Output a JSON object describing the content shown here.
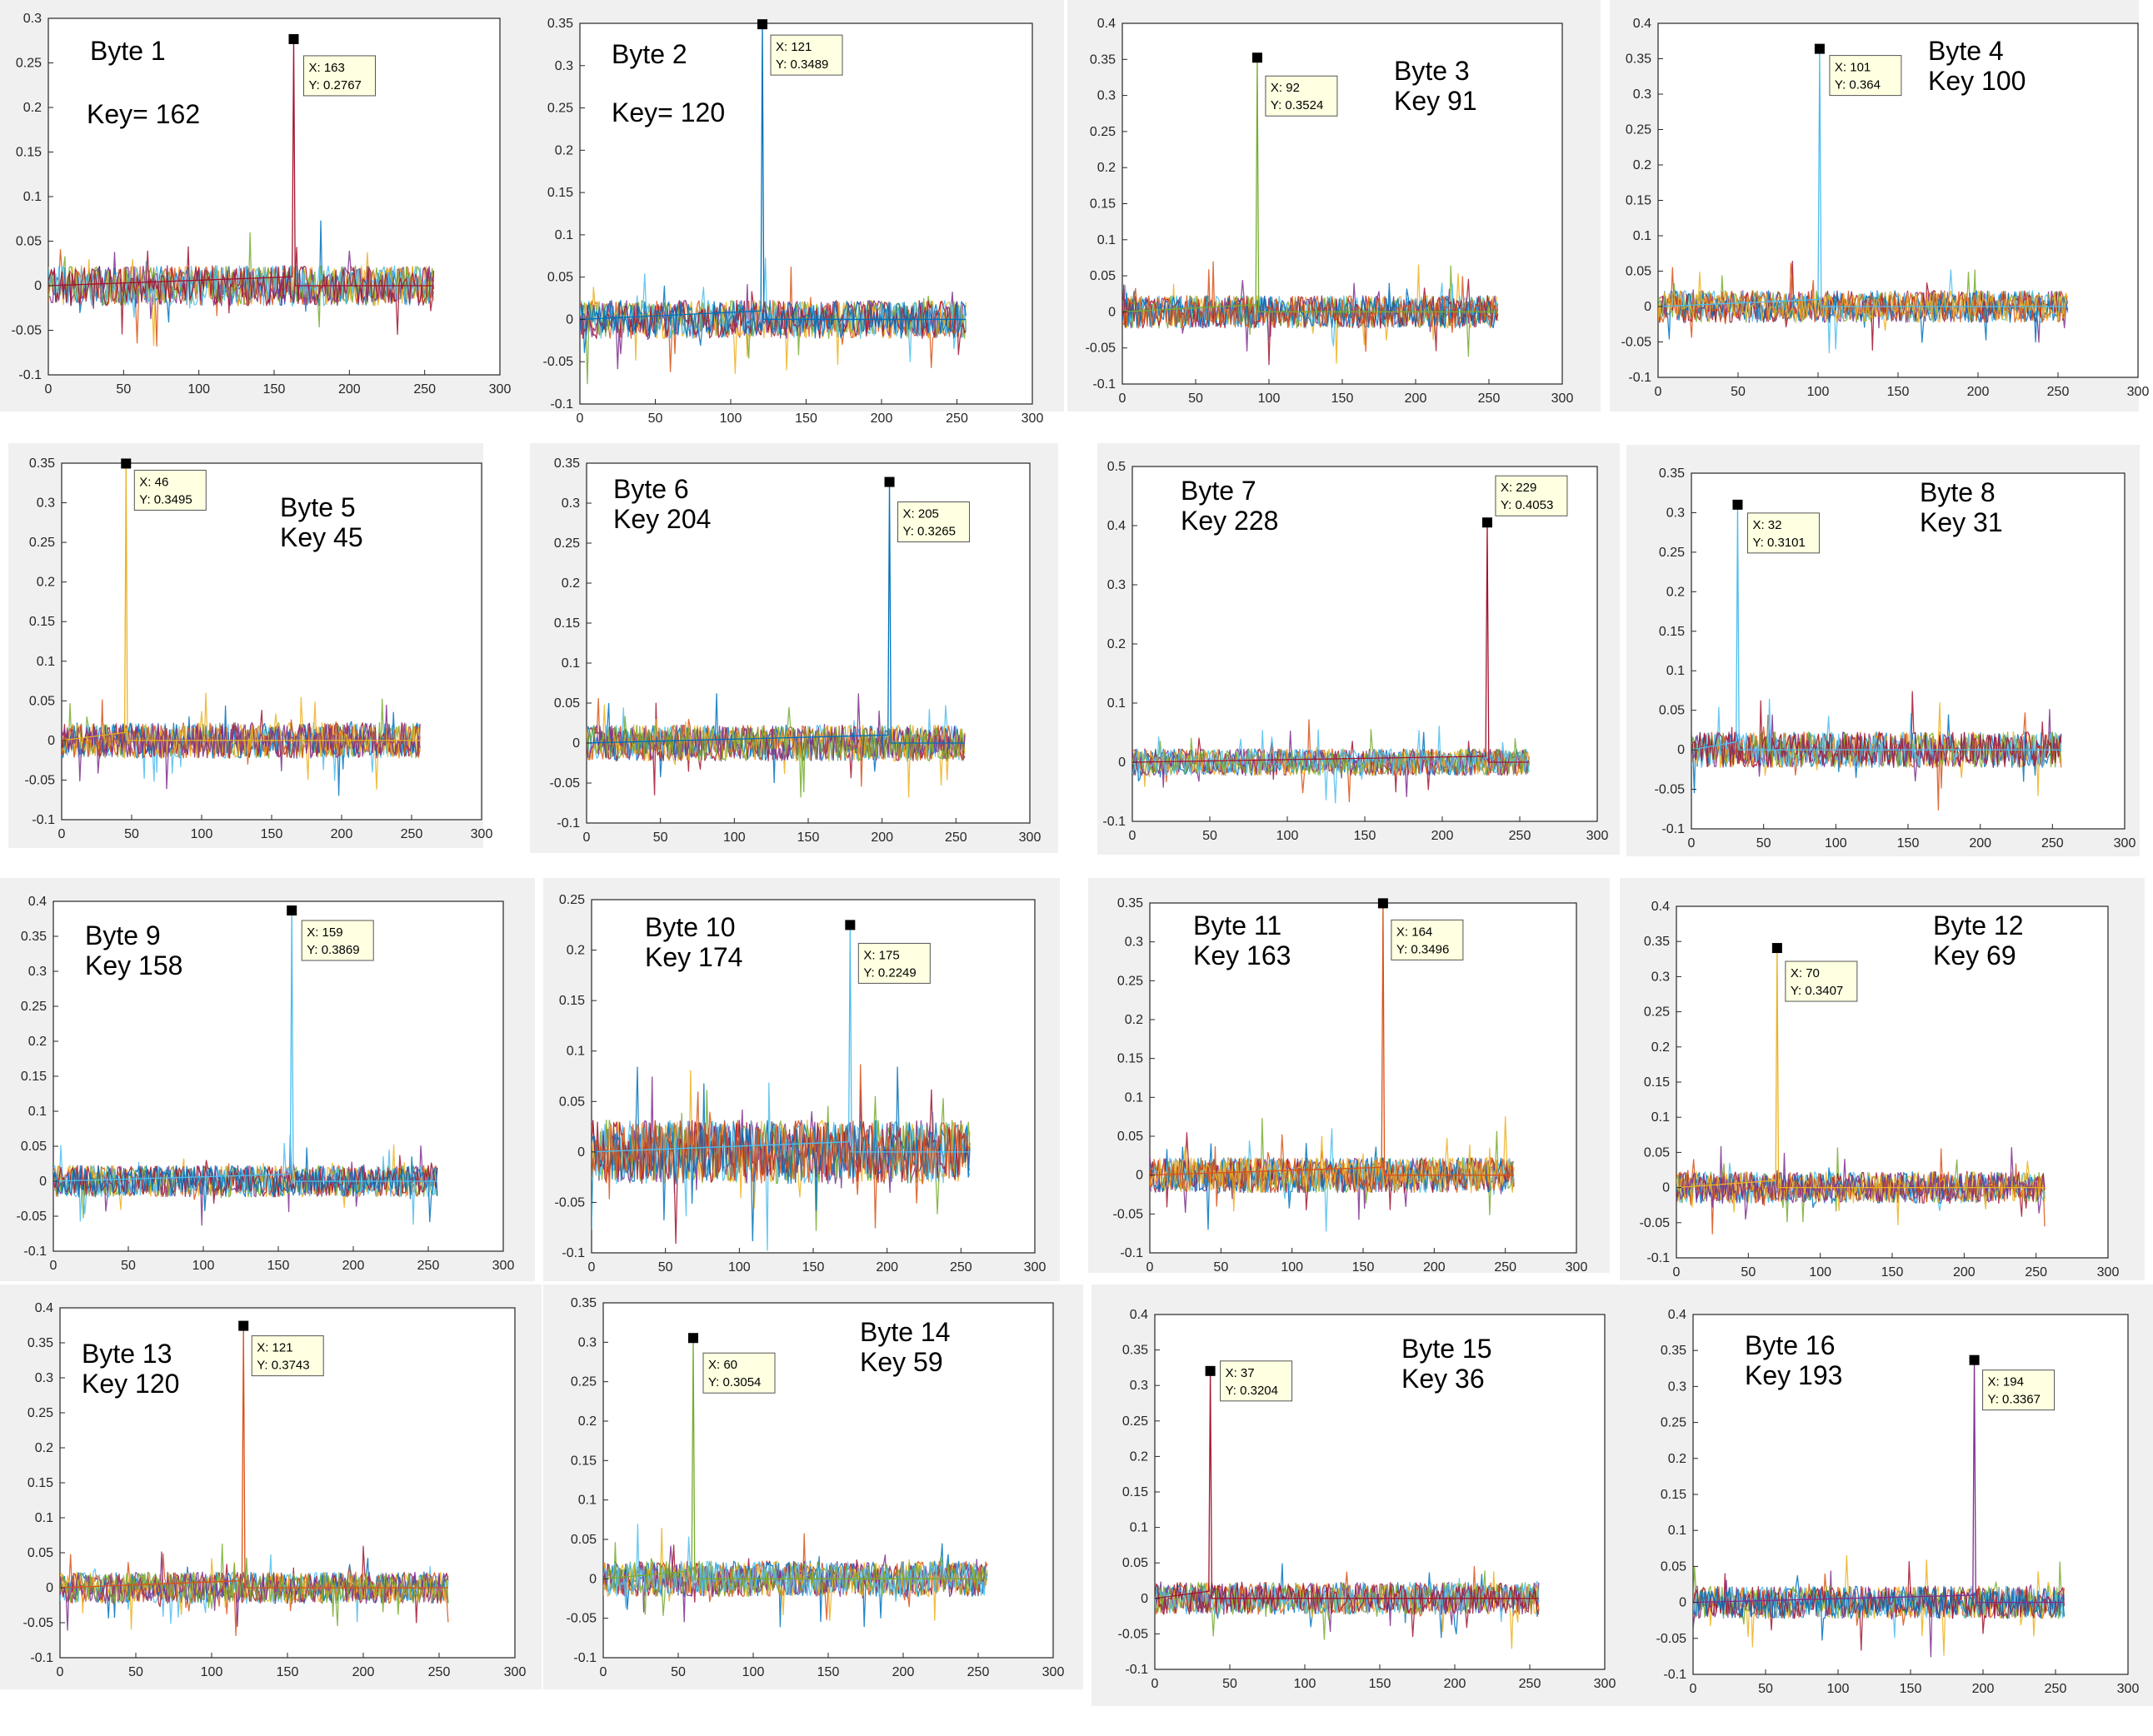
{
  "palette": [
    "#0072BD",
    "#D95319",
    "#EDB120",
    "#7E2F8E",
    "#77AC30",
    "#4DBEEE",
    "#A2142F"
  ],
  "chart_data": [
    {
      "type": "line",
      "title": "",
      "xlabel": "",
      "ylabel": "",
      "xlim": [
        0,
        300
      ],
      "ylim": [
        -0.1,
        0.3
      ],
      "xticks": [
        0,
        50,
        100,
        150,
        200,
        250,
        300
      ],
      "yticks": [
        -0.1,
        -0.05,
        0,
        0.05,
        0.1,
        0.15,
        0.2,
        0.25,
        0.3
      ],
      "annotation": [
        "Byte 1",
        "Key= 162"
      ],
      "peak": {
        "x": 163,
        "y": 0.2767
      },
      "tooltip": [
        "X: 163",
        "Y: 0.2767"
      ],
      "peak_color": "#A2142F",
      "noise_amplitude": 0.025,
      "x_max": 256
    },
    {
      "type": "line",
      "title": "",
      "xlabel": "",
      "ylabel": "",
      "xlim": [
        0,
        300
      ],
      "ylim": [
        -0.1,
        0.35
      ],
      "xticks": [
        0,
        50,
        100,
        150,
        200,
        250,
        300
      ],
      "yticks": [
        -0.1,
        -0.05,
        0,
        0.05,
        0.1,
        0.15,
        0.2,
        0.25,
        0.3,
        0.35
      ],
      "annotation": [
        "Byte 2",
        "Key= 120"
      ],
      "peak": {
        "x": 121,
        "y": 0.3489
      },
      "tooltip": [
        "X: 121",
        "Y: 0.3489"
      ],
      "peak_color": "#0072BD",
      "noise_amplitude": 0.025,
      "x_max": 256
    },
    {
      "type": "line",
      "title": "",
      "xlabel": "",
      "ylabel": "",
      "xlim": [
        0,
        300
      ],
      "ylim": [
        -0.1,
        0.4
      ],
      "xticks": [
        0,
        50,
        100,
        150,
        200,
        250,
        300
      ],
      "yticks": [
        -0.1,
        -0.05,
        0,
        0.05,
        0.1,
        0.15,
        0.2,
        0.25,
        0.3,
        0.35,
        0.4
      ],
      "annotation": [
        "Byte 3",
        "Key 91"
      ],
      "peak": {
        "x": 92,
        "y": 0.3524
      },
      "tooltip": [
        "X: 92",
        "Y: 0.3524"
      ],
      "peak_color": "#77AC30",
      "noise_amplitude": 0.025,
      "x_max": 256
    },
    {
      "type": "line",
      "title": "",
      "xlabel": "",
      "ylabel": "",
      "xlim": [
        0,
        300
      ],
      "ylim": [
        -0.1,
        0.4
      ],
      "xticks": [
        0,
        50,
        100,
        150,
        200,
        250,
        300
      ],
      "yticks": [
        -0.1,
        -0.05,
        0,
        0.05,
        0.1,
        0.15,
        0.2,
        0.25,
        0.3,
        0.35,
        0.4
      ],
      "annotation": [
        "Byte 4",
        "Key 100"
      ],
      "peak": {
        "x": 101,
        "y": 0.364
      },
      "tooltip": [
        "X: 101",
        "Y: 0.364"
      ],
      "peak_color": "#4DBEEE",
      "noise_amplitude": 0.025,
      "x_max": 256
    },
    {
      "type": "line",
      "title": "",
      "xlabel": "",
      "ylabel": "",
      "xlim": [
        0,
        300
      ],
      "ylim": [
        -0.1,
        0.35
      ],
      "xticks": [
        0,
        50,
        100,
        150,
        200,
        250,
        300
      ],
      "yticks": [
        -0.1,
        -0.05,
        0,
        0.05,
        0.1,
        0.15,
        0.2,
        0.25,
        0.3,
        0.35
      ],
      "annotation": [
        "Byte 5",
        "Key 45"
      ],
      "peak": {
        "x": 46,
        "y": 0.3495
      },
      "tooltip": [
        "X: 46",
        "Y: 0.3495"
      ],
      "peak_color": "#EDB120",
      "noise_amplitude": 0.025,
      "x_max": 256
    },
    {
      "type": "line",
      "title": "",
      "xlabel": "",
      "ylabel": "",
      "xlim": [
        0,
        300
      ],
      "ylim": [
        -0.1,
        0.35
      ],
      "xticks": [
        0,
        50,
        100,
        150,
        200,
        250,
        300
      ],
      "yticks": [
        -0.1,
        -0.05,
        0,
        0.05,
        0.1,
        0.15,
        0.2,
        0.25,
        0.3,
        0.35
      ],
      "annotation": [
        "Byte 6",
        "Key 204"
      ],
      "peak": {
        "x": 205,
        "y": 0.3265
      },
      "tooltip": [
        "X: 205",
        "Y: 0.3265"
      ],
      "peak_color": "#0072BD",
      "noise_amplitude": 0.025,
      "x_max": 256
    },
    {
      "type": "line",
      "title": "",
      "xlabel": "",
      "ylabel": "",
      "xlim": [
        0,
        300
      ],
      "ylim": [
        -0.1,
        0.5
      ],
      "xticks": [
        0,
        50,
        100,
        150,
        200,
        250,
        300
      ],
      "yticks": [
        -0.1,
        0,
        0.1,
        0.2,
        0.3,
        0.4,
        0.5
      ],
      "annotation": [
        "Byte 7",
        "Key 228"
      ],
      "peak": {
        "x": 229,
        "y": 0.4053
      },
      "tooltip": [
        "X: 229",
        "Y: 0.4053"
      ],
      "peak_color": "#A2142F",
      "noise_amplitude": 0.025,
      "x_max": 256
    },
    {
      "type": "line",
      "title": "",
      "xlabel": "",
      "ylabel": "",
      "xlim": [
        0,
        300
      ],
      "ylim": [
        -0.1,
        0.35
      ],
      "xticks": [
        0,
        50,
        100,
        150,
        200,
        250,
        300
      ],
      "yticks": [
        -0.1,
        -0.05,
        0,
        0.05,
        0.1,
        0.15,
        0.2,
        0.25,
        0.3,
        0.35
      ],
      "annotation": [
        "Byte 8",
        "Key 31"
      ],
      "peak": {
        "x": 32,
        "y": 0.3101
      },
      "tooltip": [
        "X: 32",
        "Y: 0.3101"
      ],
      "peak_color": "#4DBEEE",
      "noise_amplitude": 0.025,
      "x_max": 256
    },
    {
      "type": "line",
      "title": "",
      "xlabel": "",
      "ylabel": "",
      "xlim": [
        0,
        300
      ],
      "ylim": [
        -0.1,
        0.4
      ],
      "xticks": [
        0,
        50,
        100,
        150,
        200,
        250,
        300
      ],
      "yticks": [
        -0.1,
        -0.05,
        0,
        0.05,
        0.1,
        0.15,
        0.2,
        0.25,
        0.3,
        0.35,
        0.4
      ],
      "annotation": [
        "Byte 9",
        "Key 158"
      ],
      "peak": {
        "x": 159,
        "y": 0.3869
      },
      "tooltip": [
        "X: 159",
        "Y: 0.3869"
      ],
      "peak_color": "#4DBEEE",
      "noise_amplitude": 0.025,
      "x_max": 256
    },
    {
      "type": "line",
      "title": "",
      "xlabel": "",
      "ylabel": "",
      "xlim": [
        0,
        300
      ],
      "ylim": [
        -0.1,
        0.25
      ],
      "xticks": [
        0,
        50,
        100,
        150,
        200,
        250,
        300
      ],
      "yticks": [
        -0.1,
        -0.05,
        0,
        0.05,
        0.1,
        0.15,
        0.2,
        0.25
      ],
      "annotation": [
        "Byte 10",
        "Key 174"
      ],
      "peak": {
        "x": 175,
        "y": 0.2249
      },
      "tooltip": [
        "X: 175",
        "Y: 0.2249"
      ],
      "peak_color": "#4DBEEE",
      "noise_amplitude": 0.035,
      "x_max": 256
    },
    {
      "type": "line",
      "title": "",
      "xlabel": "",
      "ylabel": "",
      "xlim": [
        0,
        300
      ],
      "ylim": [
        -0.1,
        0.35
      ],
      "xticks": [
        0,
        50,
        100,
        150,
        200,
        250,
        300
      ],
      "yticks": [
        -0.1,
        -0.05,
        0,
        0.05,
        0.1,
        0.15,
        0.2,
        0.25,
        0.3,
        0.35
      ],
      "annotation": [
        "Byte 11",
        "Key 163"
      ],
      "peak": {
        "x": 164,
        "y": 0.3496
      },
      "tooltip": [
        "X: 164",
        "Y: 0.3496"
      ],
      "peak_color": "#D95319",
      "noise_amplitude": 0.025,
      "x_max": 256
    },
    {
      "type": "line",
      "title": "",
      "xlabel": "",
      "ylabel": "",
      "xlim": [
        0,
        300
      ],
      "ylim": [
        -0.1,
        0.4
      ],
      "xticks": [
        0,
        50,
        100,
        150,
        200,
        250,
        300
      ],
      "yticks": [
        -0.1,
        -0.05,
        0,
        0.05,
        0.1,
        0.15,
        0.2,
        0.25,
        0.3,
        0.35,
        0.4
      ],
      "annotation": [
        "Byte 12",
        "Key 69"
      ],
      "peak": {
        "x": 70,
        "y": 0.3407
      },
      "tooltip": [
        "X: 70",
        "Y: 0.3407"
      ],
      "peak_color": "#EDB120",
      "noise_amplitude": 0.025,
      "x_max": 256
    },
    {
      "type": "line",
      "title": "",
      "xlabel": "",
      "ylabel": "",
      "xlim": [
        0,
        300
      ],
      "ylim": [
        -0.1,
        0.4
      ],
      "xticks": [
        0,
        50,
        100,
        150,
        200,
        250,
        300
      ],
      "yticks": [
        -0.1,
        -0.05,
        0,
        0.05,
        0.1,
        0.15,
        0.2,
        0.25,
        0.3,
        0.35,
        0.4
      ],
      "annotation": [
        "Byte 13",
        "Key 120"
      ],
      "peak": {
        "x": 121,
        "y": 0.3743
      },
      "tooltip": [
        "X: 121",
        "Y: 0.3743"
      ],
      "peak_color": "#D95319",
      "noise_amplitude": 0.025,
      "x_max": 256
    },
    {
      "type": "line",
      "title": "",
      "xlabel": "",
      "ylabel": "",
      "xlim": [
        0,
        300
      ],
      "ylim": [
        -0.1,
        0.35
      ],
      "xticks": [
        0,
        50,
        100,
        150,
        200,
        250,
        300
      ],
      "yticks": [
        -0.1,
        -0.05,
        0,
        0.05,
        0.1,
        0.15,
        0.2,
        0.25,
        0.3,
        0.35
      ],
      "annotation": [
        "Byte 14",
        "Key 59"
      ],
      "peak": {
        "x": 60,
        "y": 0.3054
      },
      "tooltip": [
        "X: 60",
        "Y: 0.3054"
      ],
      "peak_color": "#77AC30",
      "noise_amplitude": 0.025,
      "x_max": 256
    },
    {
      "type": "line",
      "title": "",
      "xlabel": "",
      "ylabel": "",
      "xlim": [
        0,
        300
      ],
      "ylim": [
        -0.1,
        0.4
      ],
      "xticks": [
        0,
        50,
        100,
        150,
        200,
        250,
        300
      ],
      "yticks": [
        -0.1,
        -0.05,
        0,
        0.05,
        0.1,
        0.15,
        0.2,
        0.25,
        0.3,
        0.35,
        0.4
      ],
      "annotation": [
        "Byte 15",
        "Key 36"
      ],
      "peak": {
        "x": 37,
        "y": 0.3204
      },
      "tooltip": [
        "X: 37",
        "Y: 0.3204"
      ],
      "peak_color": "#A2142F",
      "noise_amplitude": 0.025,
      "x_max": 256
    },
    {
      "type": "line",
      "title": "",
      "xlabel": "",
      "ylabel": "",
      "xlim": [
        0,
        300
      ],
      "ylim": [
        -0.1,
        0.4
      ],
      "xticks": [
        0,
        50,
        100,
        150,
        200,
        250,
        300
      ],
      "yticks": [
        -0.1,
        -0.05,
        0,
        0.05,
        0.1,
        0.15,
        0.2,
        0.25,
        0.3,
        0.35,
        0.4
      ],
      "annotation": [
        "Byte 16",
        "Key 193"
      ],
      "peak": {
        "x": 194,
        "y": 0.3367
      },
      "tooltip": [
        "X: 194",
        "Y: 0.3367"
      ],
      "peak_color": "#7E2F8E",
      "noise_amplitude": 0.025,
      "x_max": 256
    }
  ]
}
